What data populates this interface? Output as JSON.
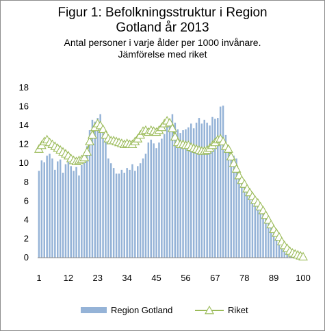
{
  "chart_data": {
    "type": "bar",
    "title": "Figur 1: Befolkningsstruktur i Region",
    "title_line2": "Gotland år 2013",
    "subtitle": "Antal personer i varje ålder per 1000 invånare.",
    "subtitle_line2": "Jämförelse med riket",
    "xlabel": "",
    "ylabel": "",
    "ylim": [
      0,
      18
    ],
    "yticks": [
      0,
      2,
      4,
      6,
      8,
      10,
      12,
      14,
      16,
      18
    ],
    "xtick_labels": [
      "1",
      "12",
      "23",
      "34",
      "45",
      "56",
      "67",
      "78",
      "89",
      "100"
    ],
    "x": [
      1,
      2,
      3,
      4,
      5,
      6,
      7,
      8,
      9,
      10,
      11,
      12,
      13,
      14,
      15,
      16,
      17,
      18,
      19,
      20,
      21,
      22,
      23,
      24,
      25,
      26,
      27,
      28,
      29,
      30,
      31,
      32,
      33,
      34,
      35,
      36,
      37,
      38,
      39,
      40,
      41,
      42,
      43,
      44,
      45,
      46,
      47,
      48,
      49,
      50,
      51,
      52,
      53,
      54,
      55,
      56,
      57,
      58,
      59,
      60,
      61,
      62,
      63,
      64,
      65,
      66,
      67,
      68,
      69,
      70,
      71,
      72,
      73,
      74,
      75,
      76,
      77,
      78,
      79,
      80,
      81,
      82,
      83,
      84,
      85,
      86,
      87,
      88,
      89,
      90,
      91,
      92,
      93,
      94,
      95,
      96,
      97,
      98,
      99,
      100
    ],
    "grid": false,
    "legend_position": "bottom",
    "series": [
      {
        "name": "Region Gotland",
        "type": "bar",
        "color": "#95b3d7",
        "values": [
          9.2,
          10.3,
          10.1,
          10.8,
          11.0,
          10.5,
          9.3,
          10.2,
          10.4,
          9.0,
          9.9,
          10.3,
          9.7,
          9.2,
          9.6,
          8.7,
          9.8,
          10.6,
          11.8,
          13.5,
          14.6,
          14.4,
          14.8,
          15.2,
          13.2,
          12.5,
          10.5,
          10.0,
          9.5,
          8.9,
          8.9,
          9.3,
          9.0,
          9.5,
          9.3,
          9.9,
          9.2,
          9.7,
          10.0,
          10.5,
          11.0,
          12.2,
          12.5,
          12.1,
          11.6,
          12.2,
          12.6,
          13.1,
          14.0,
          14.6,
          15.2,
          14.3,
          13.6,
          13.2,
          13.5,
          13.6,
          13.8,
          14.2,
          13.7,
          14.3,
          14.8,
          14.2,
          14.6,
          14.3,
          14.0,
          14.9,
          14.7,
          14.8,
          16.0,
          16.1,
          13.0,
          11.8,
          11.2,
          10.8,
          10.5,
          8.7,
          8.2,
          8.0,
          7.3,
          6.9,
          6.5,
          6.1,
          6.1,
          5.2,
          4.9,
          4.3,
          3.8,
          3.2,
          2.6,
          2.0,
          1.5,
          1.1,
          0.7,
          0.4,
          0.2,
          0.1,
          0.05,
          0.03,
          0.02,
          0.01
        ]
      },
      {
        "name": "Riket",
        "type": "line",
        "color": "#9bbb59",
        "values": [
          11.5,
          11.9,
          12.3,
          12.5,
          12.2,
          12.0,
          11.8,
          11.6,
          11.4,
          11.2,
          11.0,
          10.8,
          10.5,
          10.3,
          10.2,
          10.3,
          10.4,
          10.6,
          11.2,
          12.3,
          13.0,
          13.8,
          14.2,
          14.0,
          13.6,
          13.0,
          12.6,
          12.4,
          12.4,
          12.3,
          12.2,
          12.1,
          12.0,
          12.1,
          12.0,
          12.0,
          12.3,
          12.6,
          13.0,
          13.4,
          13.5,
          13.3,
          13.5,
          13.4,
          13.3,
          13.5,
          13.8,
          14.2,
          14.5,
          14.3,
          13.7,
          12.8,
          12.2,
          12.0,
          12.0,
          11.9,
          11.9,
          11.7,
          11.6,
          11.5,
          11.4,
          11.3,
          11.3,
          11.4,
          11.6,
          11.9,
          12.2,
          12.5,
          12.6,
          12.3,
          11.8,
          11.5,
          10.7,
          10.0,
          9.4,
          8.7,
          8.2,
          7.8,
          7.3,
          6.9,
          6.5,
          6.1,
          5.8,
          5.4,
          5.0,
          4.5,
          4.0,
          3.5,
          3.0,
          2.6,
          2.2,
          1.7,
          1.3,
          1.0,
          0.7,
          0.5,
          0.4,
          0.3,
          0.2,
          0.1
        ]
      }
    ]
  }
}
